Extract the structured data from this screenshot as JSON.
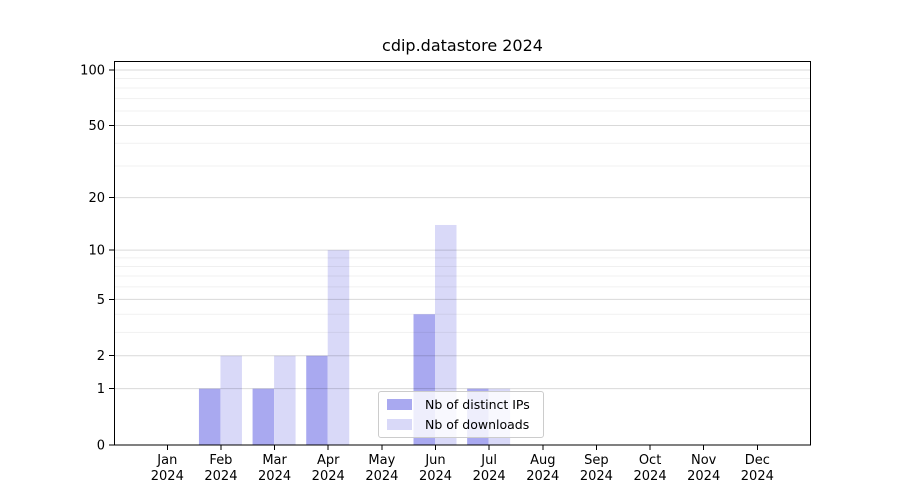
{
  "title": "cdip.datastore 2024",
  "chart_data": {
    "type": "bar",
    "title": "cdip.datastore 2024",
    "xlabel": "",
    "ylabel": "",
    "categories": [
      "Jan 2024",
      "Feb 2024",
      "Mar 2024",
      "Apr 2024",
      "May 2024",
      "Jun 2024",
      "Jul 2024",
      "Aug 2024",
      "Sep 2024",
      "Oct 2024",
      "Nov 2024",
      "Dec 2024"
    ],
    "series": [
      {
        "name": "Nb of distinct IPs",
        "color": "#a9a9f0",
        "values": [
          0,
          1,
          1,
          2,
          0,
          4,
          1,
          0,
          0,
          0,
          0,
          0
        ]
      },
      {
        "name": "Nb of downloads",
        "color": "#d9d9f8",
        "values": [
          0,
          2,
          2,
          10,
          0,
          14,
          1,
          0,
          0,
          0,
          0,
          0
        ]
      }
    ],
    "yscale": "log10(1+x)",
    "ylim": [
      0,
      112
    ],
    "y_major_ticks": [
      0,
      1,
      2,
      5,
      10,
      20,
      50,
      100
    ],
    "y_minor_gridlines": [
      3,
      4,
      6,
      7,
      8,
      9,
      30,
      40,
      60,
      70,
      80,
      90
    ],
    "grid": "horizontal",
    "legend_position": "lower center",
    "axis_color": "#000000",
    "major_grid_color": "rgba(0,0,0,0.15)",
    "minor_grid_color": "rgba(0,0,0,0.06)"
  }
}
